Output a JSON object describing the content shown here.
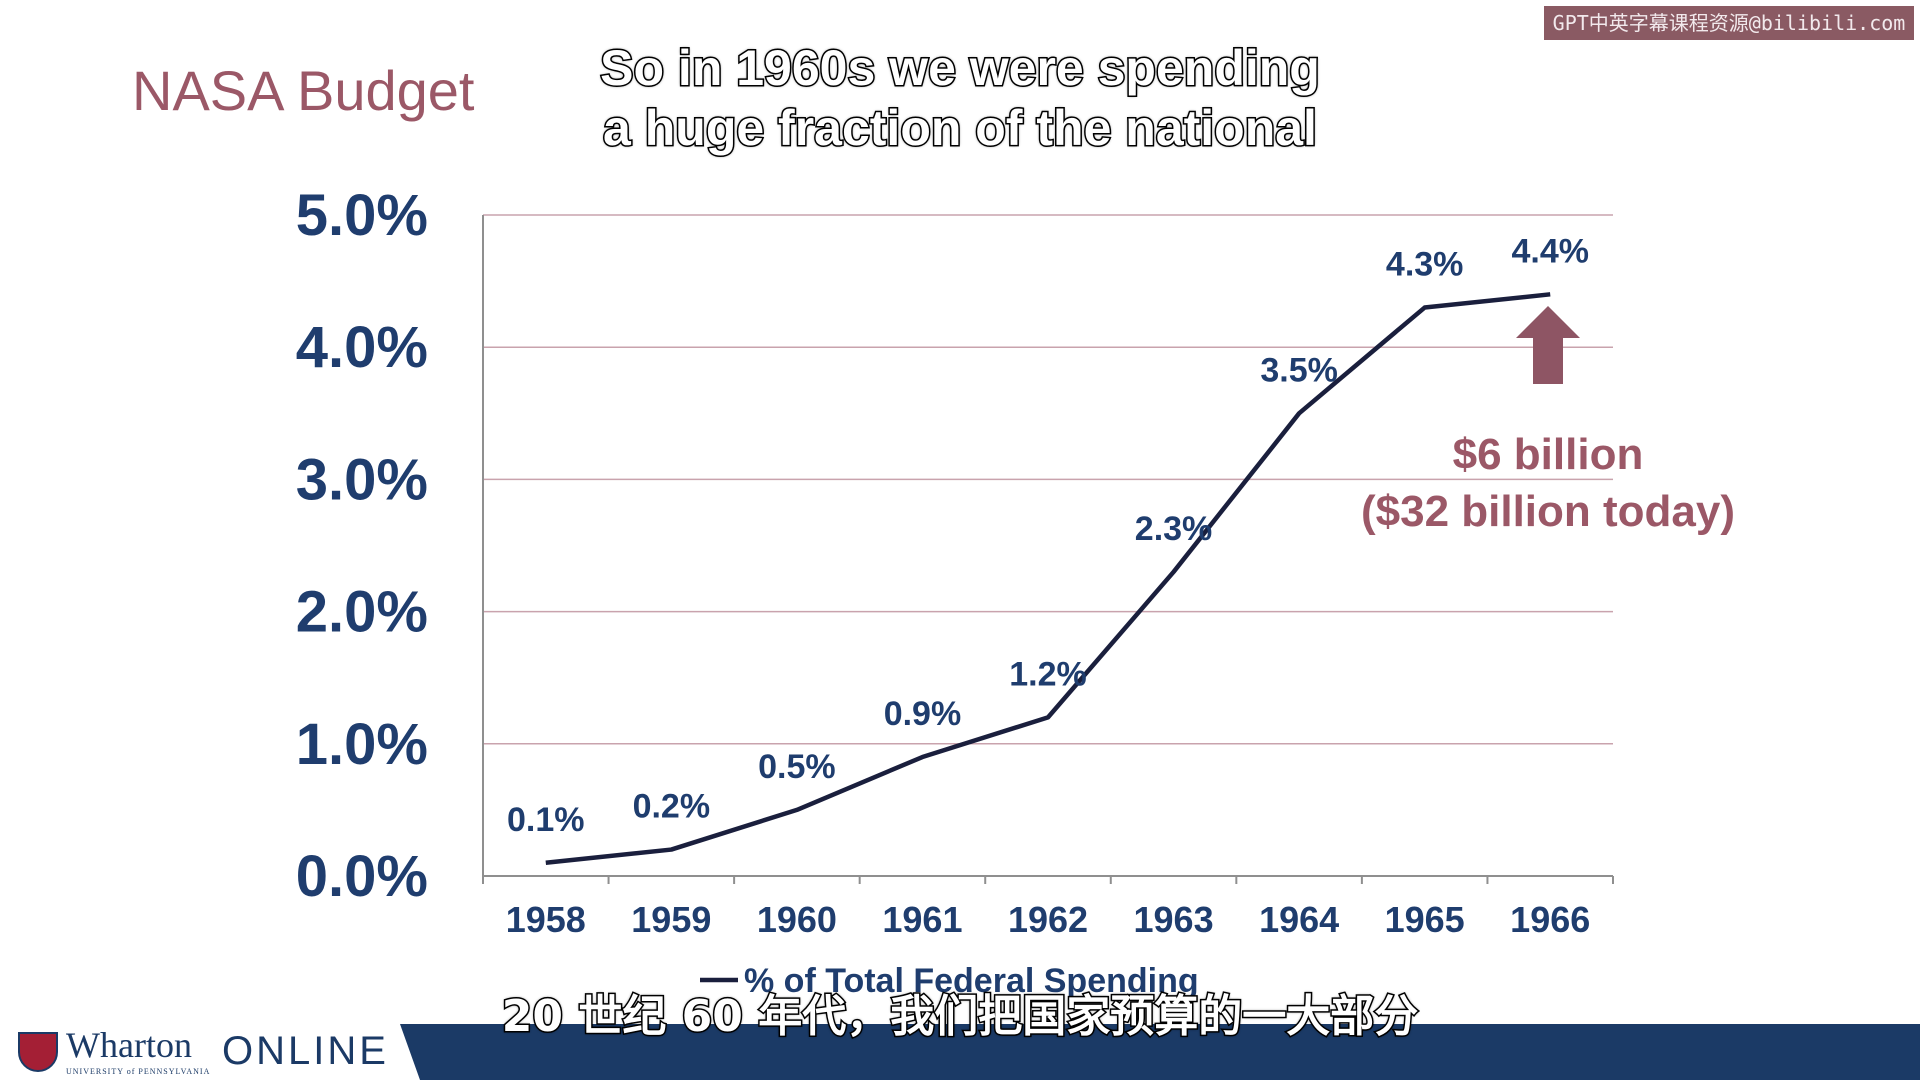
{
  "watermark": "GPT中英字幕课程资源@bilibili.com",
  "slide_title": "NASA Budget",
  "subtitles": {
    "english_line1": "So in 1960s we were spending",
    "english_line2": "a huge fraction of the national",
    "chinese": "20 世纪 60 年代，我们把国家预算的一大部分"
  },
  "annotation": {
    "line1": "$6 billion",
    "line2": "($32 billion today)",
    "color": "#9b5867"
  },
  "footer": {
    "logo_text": "Wharton",
    "logo_subtext": "UNIVERSITY of PENNSYLVANIA",
    "online_text": "ONLINE"
  },
  "chart_data": {
    "type": "line",
    "x": [
      "1958",
      "1959",
      "1960",
      "1961",
      "1962",
      "1963",
      "1964",
      "1965",
      "1966"
    ],
    "series": [
      {
        "name": "% of Total Federal Spending",
        "values": [
          0.1,
          0.2,
          0.5,
          0.9,
          1.2,
          2.3,
          3.5,
          4.3,
          4.4
        ],
        "labels": [
          "0.1%",
          "0.2%",
          "0.5%",
          "0.9%",
          "1.2%",
          "2.3%",
          "3.5%",
          "4.3%",
          "4.4%"
        ],
        "color": "#1a1f3d"
      }
    ],
    "y_ticks": [
      "0.0%",
      "1.0%",
      "2.0%",
      "3.0%",
      "4.0%",
      "5.0%"
    ],
    "ylim": [
      0,
      5
    ],
    "grid": true,
    "grid_color": "#c9a3ad",
    "tick_color": "#1f3d6e",
    "legend": "bottom"
  }
}
